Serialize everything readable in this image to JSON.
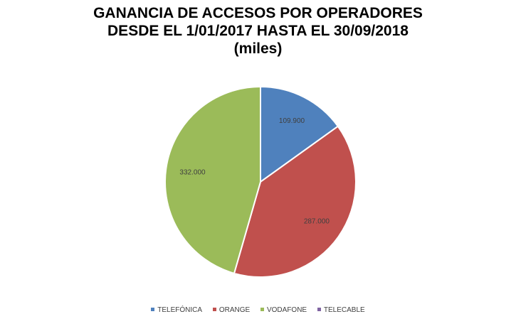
{
  "chart_data": {
    "type": "pie",
    "title_lines": [
      "GANANCIA DE ACCESOS POR OPERADORES",
      "DESDE EL 1/01/2017 HASTA EL 30/09/2018",
      "(miles)"
    ],
    "slices": [
      {
        "name": "TELEFÓNICA",
        "value": 109.9,
        "label": "109.900",
        "color": "#4F81BD"
      },
      {
        "name": "ORANGE",
        "value": 287.0,
        "label": "287.000",
        "color": "#C0504D"
      },
      {
        "name": "VODAFONE",
        "value": 332.0,
        "label": "332.000",
        "color": "#9BBB59"
      },
      {
        "name": "TELECABLE",
        "value": 0,
        "label": "",
        "color": "#8064A2"
      }
    ],
    "start_angle": "12 o'clock",
    "direction": "clockwise",
    "legend_position": "bottom"
  }
}
